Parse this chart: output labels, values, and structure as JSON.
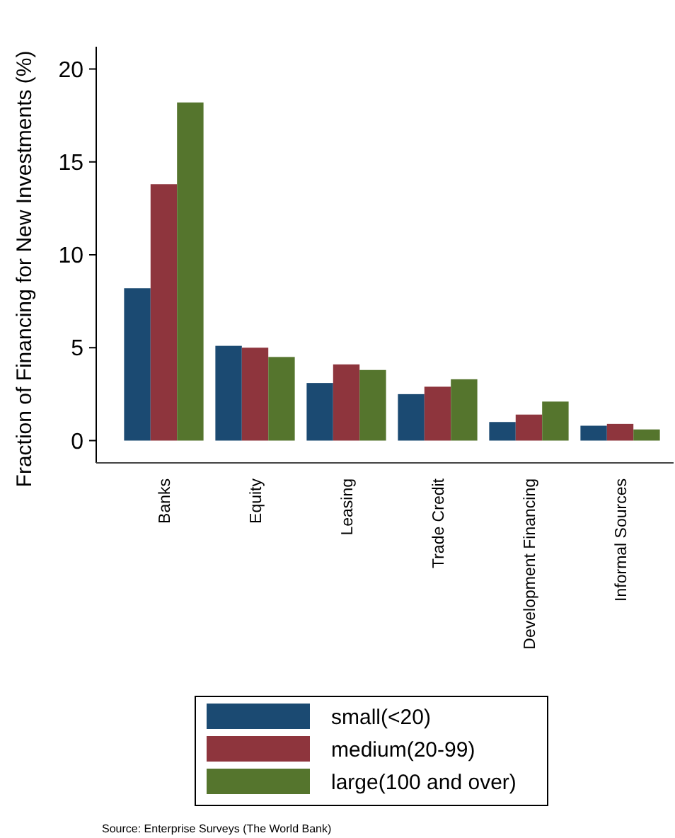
{
  "chart_data": {
    "type": "bar",
    "ylabel": "Fraction of Financing for New Investments (%)",
    "categories": [
      "Banks",
      "Equity",
      "Leasing",
      "Trade Credit",
      "Development Financing",
      "Informal Sources"
    ],
    "series": [
      {
        "name": "small(<20)",
        "color": "#1b4a72",
        "values": [
          8.2,
          5.1,
          3.1,
          2.5,
          1.0,
          0.8
        ]
      },
      {
        "name": "medium(20-99)",
        "color": "#8e353d",
        "values": [
          13.8,
          5.0,
          4.1,
          2.9,
          1.4,
          0.9
        ]
      },
      {
        "name": "large(100 and over)",
        "color": "#55752d",
        "values": [
          18.2,
          4.5,
          3.8,
          3.3,
          2.1,
          0.6
        ]
      }
    ],
    "ylim": [
      -1.2,
      21.2
    ],
    "yticks": [
      0,
      5,
      10,
      15,
      20
    ],
    "grid": false,
    "legend": "bottom",
    "annotations": [
      "Source: Enterprise Surveys (The World Bank)"
    ]
  }
}
